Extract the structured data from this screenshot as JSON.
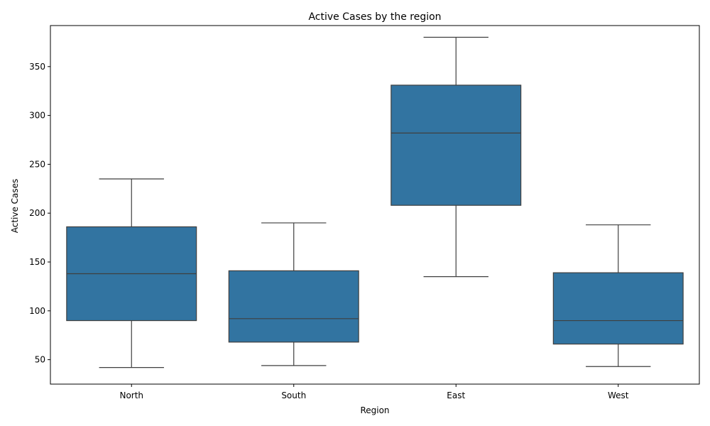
{
  "chart_data": {
    "type": "box",
    "title": "Active Cases by the region",
    "xlabel": "Region",
    "ylabel": "Active Cases",
    "ylim": [
      25,
      392
    ],
    "yticks": [
      50,
      100,
      150,
      200,
      250,
      300,
      350
    ],
    "grid": false,
    "color": "#3274a1",
    "categories": [
      "North",
      "South",
      "East",
      "West"
    ],
    "boxes": [
      {
        "category": "North",
        "whisker_low": 42,
        "q1": 90,
        "median": 138,
        "q3": 186,
        "whisker_high": 235
      },
      {
        "category": "South",
        "whisker_low": 44,
        "q1": 68,
        "median": 92,
        "q3": 141,
        "whisker_high": 190
      },
      {
        "category": "East",
        "whisker_low": 135,
        "q1": 208,
        "median": 282,
        "q3": 331,
        "whisker_high": 380
      },
      {
        "category": "West",
        "whisker_low": 43,
        "q1": 66,
        "median": 90,
        "q3": 139,
        "whisker_high": 188
      }
    ]
  }
}
